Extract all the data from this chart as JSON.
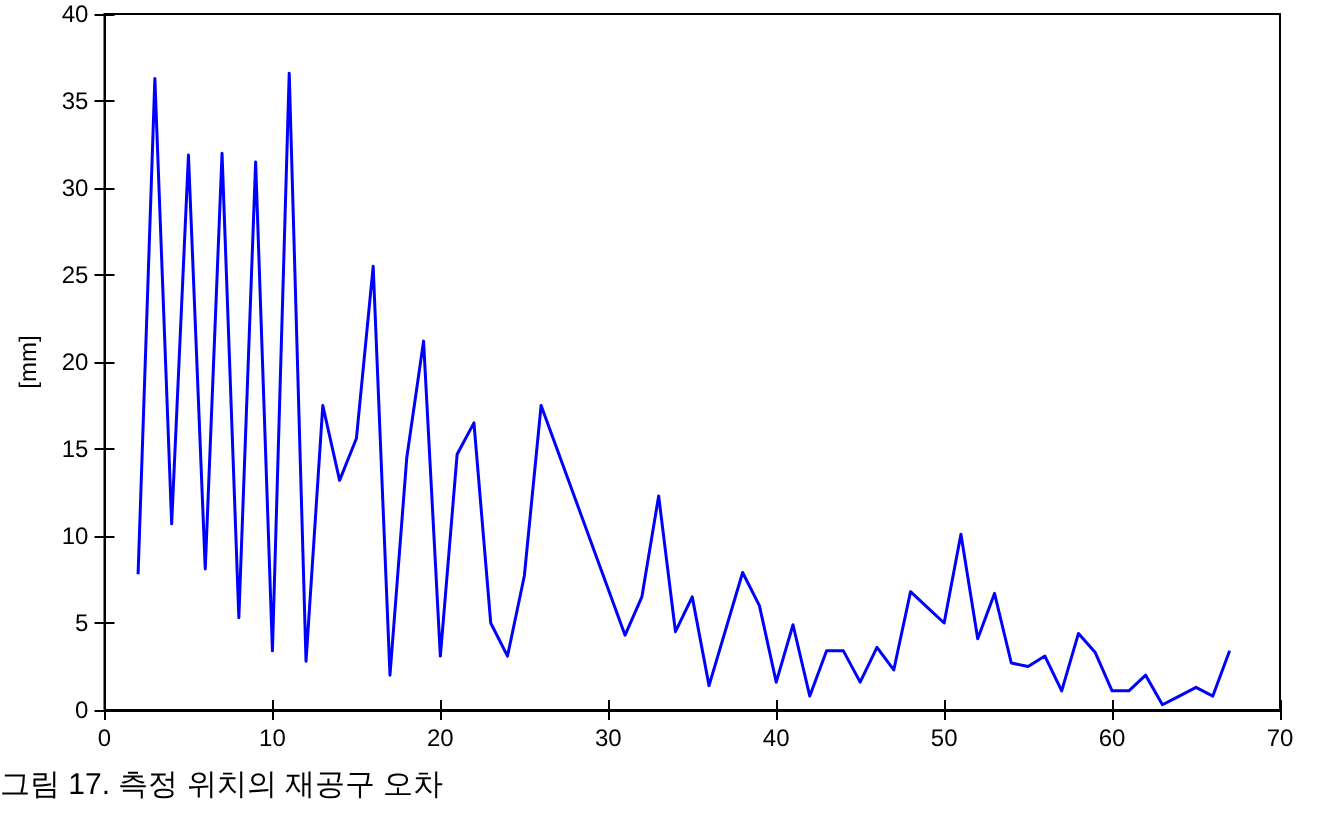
{
  "chart_data": {
    "type": "line",
    "ylabel": "[mm]",
    "annotations": [
      "그림 17. 측정 위치의 재공구 오차"
    ],
    "x": [
      2,
      3,
      4,
      5,
      6,
      7,
      8,
      9,
      10,
      11,
      12,
      13,
      14,
      15,
      16,
      17,
      18,
      19,
      20,
      21,
      22,
      23,
      24,
      25,
      26,
      31,
      32,
      33,
      34,
      35,
      36,
      38,
      39,
      40,
      41,
      42,
      43,
      44,
      45,
      46,
      47,
      48,
      49,
      50,
      51,
      52,
      53,
      54,
      55,
      56,
      57,
      58,
      59,
      60,
      61,
      62,
      63,
      64,
      65,
      66,
      67
    ],
    "series": [
      {
        "color": "#0000ff",
        "values": [
          7.8,
          36.3,
          10.7,
          31.9,
          8.1,
          32,
          5.3,
          31.5,
          3.4,
          36.6,
          2.8,
          17.5,
          13.2,
          15.6,
          25.5,
          2.0,
          14.5,
          21.2,
          3.1,
          14.7,
          16.5,
          5.0,
          3.1,
          7.7,
          17.5,
          4.3,
          6.5,
          12.3,
          4.5,
          6.5,
          1.4,
          7.9,
          6.0,
          1.6,
          4.9,
          0.8,
          3.4,
          3.4,
          1.6,
          3.6,
          2.3,
          6.8,
          5.9,
          5.0,
          10.1,
          4.1,
          6.7,
          2.7,
          2.5,
          3.1,
          1.1,
          4.4,
          3.3,
          1.1,
          1.1,
          2.0,
          0.3,
          0.8,
          1.3,
          0.8,
          3.4
        ]
      }
    ],
    "xlim": [
      0,
      70
    ],
    "xticks": [
      0,
      10,
      20,
      30,
      40,
      50,
      60,
      70
    ],
    "ylim": [
      0,
      40
    ],
    "yticks": [
      0,
      5,
      10,
      15,
      20,
      25,
      30,
      35,
      40
    ],
    "grid": false,
    "marker": "none",
    "line_style": "solid"
  }
}
